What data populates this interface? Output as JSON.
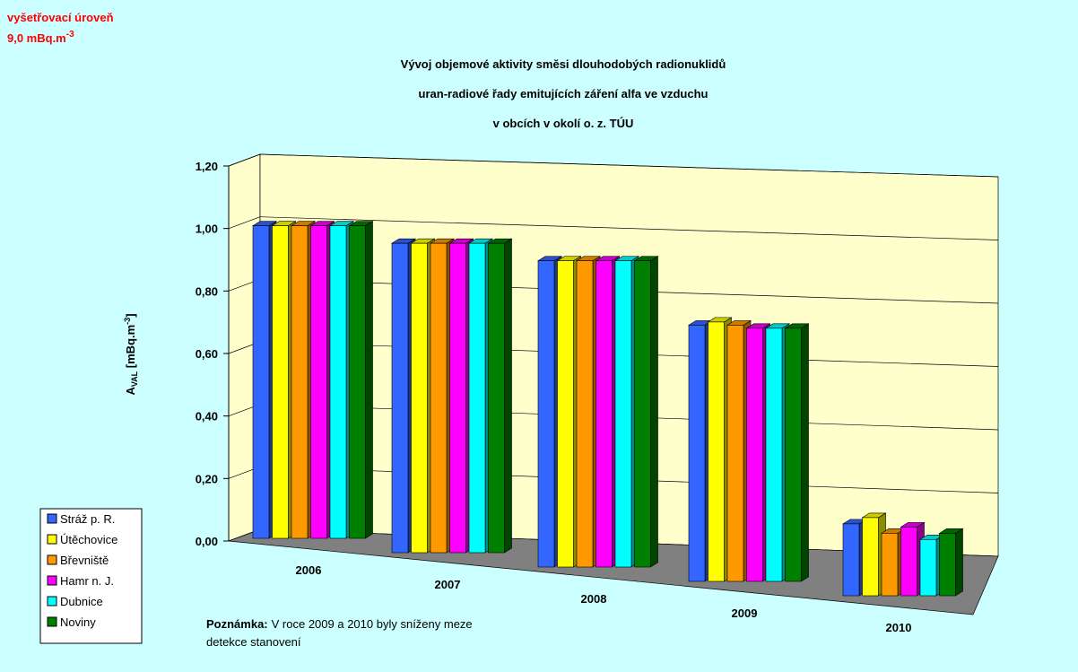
{
  "chart_data": {
    "type": "bar3d",
    "investigation_level": [
      "vyšetřovací úroveň",
      "9,0 mBq.m",
      "-3"
    ],
    "title": [
      "Vývoj objemové aktivity směsi dlouhodobých radionuklidů",
      "uran-radiové řady emitujících záření alfa ve vzduchu",
      "v obcích v okolí o. z. TÚU"
    ],
    "y_label": [
      "A",
      "VAL",
      " [mBq.m",
      "-3",
      "]"
    ],
    "categories": [
      "2006",
      "2007",
      "2008",
      "2009",
      "2010"
    ],
    "series": [
      {
        "name": "Stráž p. R.",
        "color": "#3366ff",
        "values": [
          1.0,
          0.99,
          0.98,
          0.82,
          0.23
        ]
      },
      {
        "name": "Útěchovice",
        "color": "#ffff00",
        "values": [
          1.0,
          0.99,
          0.98,
          0.83,
          0.25
        ]
      },
      {
        "name": "Břevniště",
        "color": "#ff9900",
        "values": [
          1.0,
          0.99,
          0.98,
          0.82,
          0.2
        ]
      },
      {
        "name": "Hamr n. J.",
        "color": "#ff00ff",
        "values": [
          1.0,
          0.99,
          0.98,
          0.81,
          0.22
        ]
      },
      {
        "name": "Dubnice",
        "color": "#00ffff",
        "values": [
          1.0,
          0.99,
          0.98,
          0.81,
          0.18
        ]
      },
      {
        "name": "Noviny",
        "color": "#008000",
        "values": [
          1.0,
          0.99,
          0.98,
          0.81,
          0.2
        ]
      }
    ],
    "ylim": [
      0,
      1.2
    ],
    "yticks": [
      {
        "value": 0,
        "label": "0,00"
      },
      {
        "value": 0.2,
        "label": "0,20"
      },
      {
        "value": 0.4,
        "label": "0,40"
      },
      {
        "value": 0.6,
        "label": "0,60"
      },
      {
        "value": 0.8,
        "label": "0,80"
      },
      {
        "value": 1.0,
        "label": "1,00"
      },
      {
        "value": 1.2,
        "label": "1,20"
      }
    ],
    "grid": true,
    "note": {
      "label": "Poznámka:",
      "text": [
        "V roce 2009 a 2010 byly sníženy meze",
        "detekce stanovení"
      ]
    }
  }
}
